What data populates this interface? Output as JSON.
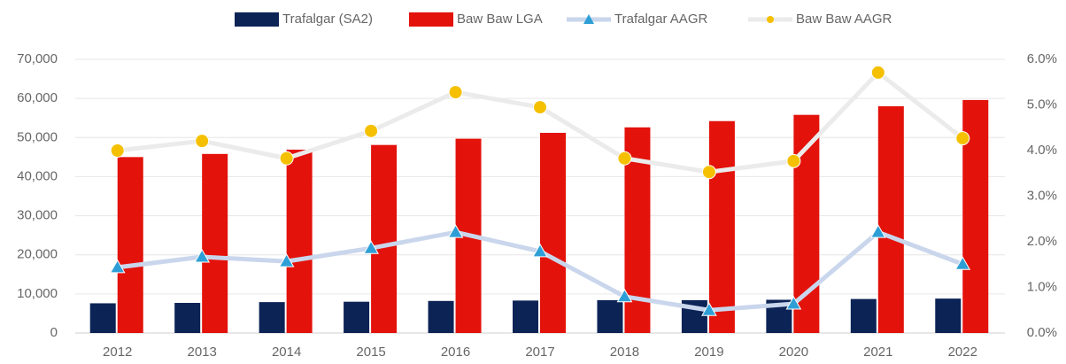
{
  "chart_data": {
    "type": "bar_line",
    "categories": [
      "2012",
      "2013",
      "2014",
      "2015",
      "2016",
      "2017",
      "2018",
      "2019",
      "2020",
      "2021",
      "2022"
    ],
    "series": [
      {
        "name": "Trafalgar (SA2)",
        "type": "bar",
        "color": "#0c2356",
        "values": [
          7600,
          7700,
          7900,
          8000,
          8200,
          8300,
          8400,
          8400,
          8500,
          8700,
          8800
        ]
      },
      {
        "name": "Baw Baw LGA",
        "type": "bar",
        "color": "#e3120b",
        "values": [
          45000,
          45800,
          46900,
          48100,
          49700,
          51200,
          52600,
          54200,
          55800,
          58000,
          59600
        ]
      },
      {
        "name": "Trafalgar AAGR",
        "type": "line",
        "axis": "y2",
        "color": "#c9d6ec",
        "marker": "triangle",
        "marker_color": "#2e9fd6",
        "values": [
          1.44,
          1.67,
          1.57,
          1.86,
          2.21,
          1.79,
          0.8,
          0.5,
          0.64,
          2.21,
          1.51
        ]
      },
      {
        "name": "Baw Baw AAGR",
        "type": "line",
        "axis": "y2",
        "color": "#ebebeb",
        "marker": "circle",
        "marker_color": "#f5c000",
        "values": [
          4.0,
          4.21,
          3.83,
          4.43,
          5.28,
          4.95,
          3.83,
          3.53,
          3.77,
          5.71,
          4.27
        ]
      }
    ],
    "ylim": [
      0,
      70000
    ],
    "yticks": [
      0,
      {
        "value": 10000,
        "label": "10,000"
      },
      {
        "value": 20000,
        "label": "20,000"
      },
      {
        "value": 30000,
        "label": "30,000"
      },
      {
        "value": 40000,
        "label": "40,000"
      },
      {
        "value": 50000,
        "label": "50,000"
      },
      {
        "value": 60000,
        "label": "60,000"
      },
      {
        "value": 70000,
        "label": "70,000"
      }
    ],
    "y2lim": [
      0,
      6
    ],
    "y2ticks": [
      {
        "value": 0,
        "label": "0.0%"
      },
      {
        "value": 1,
        "label": "1.0%"
      },
      {
        "value": 2,
        "label": "2.0%"
      },
      {
        "value": 3,
        "label": "3.0%"
      },
      {
        "value": 4,
        "label": "4.0%"
      },
      {
        "value": 5,
        "label": "5.0%"
      },
      {
        "value": 6,
        "label": "6.0%"
      }
    ],
    "grid": true,
    "legend": "top"
  }
}
